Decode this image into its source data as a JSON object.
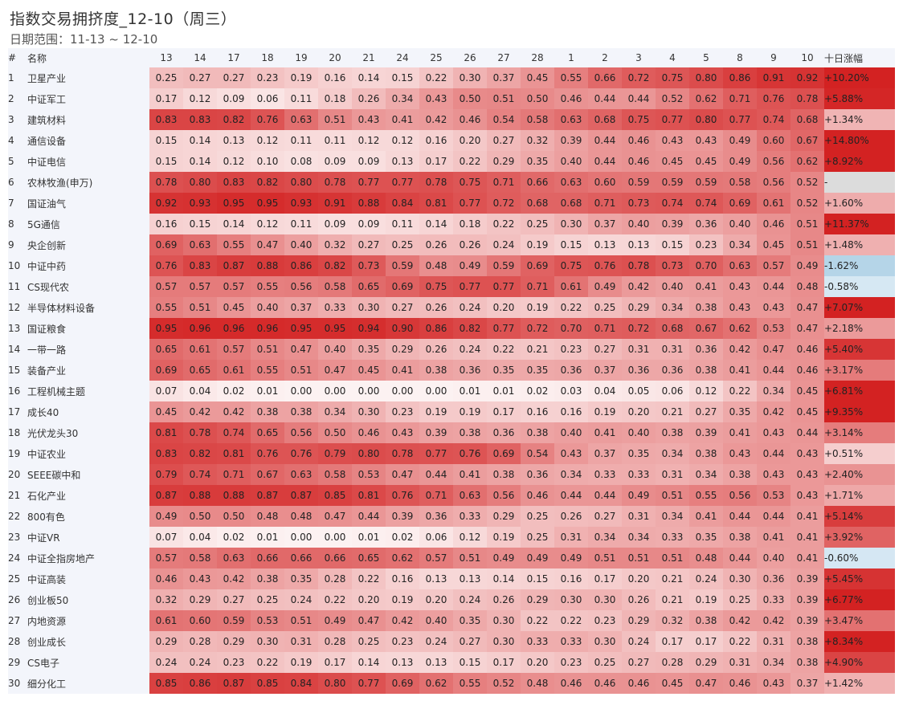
{
  "title": "指数交易拥挤度_12-10（周三）",
  "subtitle": "日期范围：11-13 ~ 12-10",
  "colors": {
    "hot": "#d32222",
    "cold": "#ffffff",
    "neg": "#b5d5e8",
    "na": "#dcdcdc",
    "header_bg": "#f3f5fb"
  },
  "chart_data": {
    "type": "heatmap",
    "headers": {
      "index": "#",
      "name": "名称",
      "change": "十日涨幅"
    },
    "dates": [
      "13",
      "14",
      "17",
      "18",
      "19",
      "20",
      "21",
      "24",
      "25",
      "26",
      "27",
      "28",
      "1",
      "2",
      "3",
      "4",
      "5",
      "8",
      "9",
      "10"
    ],
    "rows": [
      {
        "idx": "1",
        "name": "卫星产业",
        "values": [
          0.25,
          0.27,
          0.27,
          0.23,
          0.19,
          0.16,
          0.14,
          0.15,
          0.22,
          0.3,
          0.37,
          0.45,
          0.55,
          0.66,
          0.72,
          0.75,
          0.8,
          0.86,
          0.91,
          0.92
        ],
        "change": "+10.20%",
        "change_num": 10.2
      },
      {
        "idx": "2",
        "name": "中证军工",
        "values": [
          0.17,
          0.12,
          0.09,
          0.06,
          0.11,
          0.18,
          0.26,
          0.34,
          0.43,
          0.5,
          0.51,
          0.5,
          0.46,
          0.44,
          0.44,
          0.52,
          0.62,
          0.71,
          0.76,
          0.78
        ],
        "change": "+5.88%",
        "change_num": 5.88
      },
      {
        "idx": "3",
        "name": "建筑材料",
        "values": [
          0.83,
          0.83,
          0.82,
          0.76,
          0.63,
          0.51,
          0.43,
          0.41,
          0.42,
          0.46,
          0.54,
          0.58,
          0.63,
          0.68,
          0.75,
          0.77,
          0.8,
          0.77,
          0.74,
          0.68
        ],
        "change": "+1.34%",
        "change_num": 1.34
      },
      {
        "idx": "4",
        "name": "通信设备",
        "values": [
          0.15,
          0.14,
          0.13,
          0.12,
          0.11,
          0.11,
          0.12,
          0.12,
          0.16,
          0.2,
          0.27,
          0.32,
          0.39,
          0.44,
          0.46,
          0.43,
          0.43,
          0.49,
          0.6,
          0.67
        ],
        "change": "+14.80%",
        "change_num": 14.8
      },
      {
        "idx": "5",
        "name": "中证电信",
        "values": [
          0.15,
          0.14,
          0.12,
          0.1,
          0.08,
          0.09,
          0.09,
          0.13,
          0.17,
          0.22,
          0.29,
          0.35,
          0.4,
          0.44,
          0.46,
          0.45,
          0.45,
          0.49,
          0.56,
          0.62
        ],
        "change": "+8.92%",
        "change_num": 8.92
      },
      {
        "idx": "6",
        "name": "农林牧渔(申万)",
        "values": [
          0.78,
          0.8,
          0.83,
          0.82,
          0.8,
          0.78,
          0.77,
          0.77,
          0.78,
          0.75,
          0.71,
          0.66,
          0.63,
          0.6,
          0.59,
          0.59,
          0.59,
          0.58,
          0.56,
          0.52
        ],
        "change": "-",
        "change_num": null
      },
      {
        "idx": "7",
        "name": "国证油气",
        "values": [
          0.92,
          0.93,
          0.95,
          0.95,
          0.93,
          0.91,
          0.88,
          0.84,
          0.81,
          0.77,
          0.72,
          0.68,
          0.68,
          0.71,
          0.73,
          0.74,
          0.74,
          0.69,
          0.61,
          0.52
        ],
        "change": "+1.60%",
        "change_num": 1.6
      },
      {
        "idx": "8",
        "name": "5G通信",
        "values": [
          0.16,
          0.15,
          0.14,
          0.12,
          0.11,
          0.09,
          0.09,
          0.11,
          0.14,
          0.18,
          0.22,
          0.25,
          0.3,
          0.37,
          0.4,
          0.39,
          0.36,
          0.4,
          0.46,
          0.51
        ],
        "change": "+11.37%",
        "change_num": 11.37
      },
      {
        "idx": "9",
        "name": "央企创新",
        "values": [
          0.69,
          0.63,
          0.55,
          0.47,
          0.4,
          0.32,
          0.27,
          0.25,
          0.26,
          0.26,
          0.24,
          0.19,
          0.15,
          0.13,
          0.13,
          0.15,
          0.23,
          0.34,
          0.45,
          0.51
        ],
        "change": "+1.48%",
        "change_num": 1.48
      },
      {
        "idx": "10",
        "name": "中证中药",
        "values": [
          0.76,
          0.83,
          0.87,
          0.88,
          0.86,
          0.82,
          0.73,
          0.59,
          0.48,
          0.49,
          0.59,
          0.69,
          0.75,
          0.76,
          0.78,
          0.73,
          0.7,
          0.63,
          0.57,
          0.49
        ],
        "change": "-1.62%",
        "change_num": -1.62
      },
      {
        "idx": "11",
        "name": "CS现代农",
        "values": [
          0.57,
          0.57,
          0.57,
          0.55,
          0.56,
          0.58,
          0.65,
          0.69,
          0.75,
          0.77,
          0.77,
          0.71,
          0.61,
          0.49,
          0.42,
          0.4,
          0.41,
          0.43,
          0.44,
          0.48
        ],
        "change": "-0.58%",
        "change_num": -0.58
      },
      {
        "idx": "12",
        "name": "半导体材料设备",
        "values": [
          0.55,
          0.51,
          0.45,
          0.4,
          0.37,
          0.33,
          0.3,
          0.27,
          0.26,
          0.24,
          0.2,
          0.19,
          0.22,
          0.25,
          0.29,
          0.34,
          0.38,
          0.43,
          0.43,
          0.47
        ],
        "change": "+7.07%",
        "change_num": 7.07
      },
      {
        "idx": "13",
        "name": "国证粮食",
        "values": [
          0.95,
          0.96,
          0.96,
          0.96,
          0.95,
          0.95,
          0.94,
          0.9,
          0.86,
          0.82,
          0.77,
          0.72,
          0.7,
          0.71,
          0.72,
          0.68,
          0.67,
          0.62,
          0.53,
          0.47
        ],
        "change": "+2.18%",
        "change_num": 2.18
      },
      {
        "idx": "14",
        "name": "一带一路",
        "values": [
          0.65,
          0.61,
          0.57,
          0.51,
          0.47,
          0.4,
          0.35,
          0.29,
          0.26,
          0.24,
          0.22,
          0.21,
          0.23,
          0.27,
          0.31,
          0.31,
          0.36,
          0.42,
          0.47,
          0.46
        ],
        "change": "+5.40%",
        "change_num": 5.4
      },
      {
        "idx": "15",
        "name": "装备产业",
        "values": [
          0.69,
          0.65,
          0.61,
          0.55,
          0.51,
          0.47,
          0.45,
          0.41,
          0.38,
          0.36,
          0.35,
          0.35,
          0.36,
          0.37,
          0.36,
          0.36,
          0.38,
          0.41,
          0.44,
          0.46
        ],
        "change": "+3.17%",
        "change_num": 3.17
      },
      {
        "idx": "16",
        "name": "工程机械主题",
        "values": [
          0.07,
          0.04,
          0.02,
          0.01,
          0.0,
          0.0,
          0.0,
          0.0,
          0.0,
          0.01,
          0.01,
          0.02,
          0.03,
          0.04,
          0.05,
          0.06,
          0.12,
          0.22,
          0.34,
          0.45
        ],
        "change": "+6.81%",
        "change_num": 6.81
      },
      {
        "idx": "17",
        "name": "成长40",
        "values": [
          0.45,
          0.42,
          0.42,
          0.38,
          0.38,
          0.34,
          0.3,
          0.23,
          0.19,
          0.19,
          0.17,
          0.16,
          0.16,
          0.19,
          0.2,
          0.21,
          0.27,
          0.35,
          0.42,
          0.45
        ],
        "change": "+9.35%",
        "change_num": 9.35
      },
      {
        "idx": "18",
        "name": "光伏龙头30",
        "values": [
          0.81,
          0.78,
          0.74,
          0.65,
          0.56,
          0.5,
          0.46,
          0.43,
          0.39,
          0.38,
          0.36,
          0.38,
          0.4,
          0.41,
          0.4,
          0.38,
          0.39,
          0.41,
          0.43,
          0.44
        ],
        "change": "+3.14%",
        "change_num": 3.14
      },
      {
        "idx": "19",
        "name": "中证农业",
        "values": [
          0.83,
          0.82,
          0.81,
          0.76,
          0.76,
          0.79,
          0.8,
          0.78,
          0.77,
          0.76,
          0.69,
          0.54,
          0.43,
          0.37,
          0.35,
          0.34,
          0.38,
          0.43,
          0.44,
          0.43
        ],
        "change": "+0.51%",
        "change_num": 0.51
      },
      {
        "idx": "20",
        "name": "SEEE碳中和",
        "values": [
          0.79,
          0.74,
          0.71,
          0.67,
          0.63,
          0.58,
          0.53,
          0.47,
          0.44,
          0.41,
          0.38,
          0.36,
          0.34,
          0.33,
          0.33,
          0.31,
          0.34,
          0.38,
          0.43,
          0.43
        ],
        "change": "+2.40%",
        "change_num": 2.4
      },
      {
        "idx": "21",
        "name": "石化产业",
        "values": [
          0.87,
          0.88,
          0.88,
          0.87,
          0.87,
          0.85,
          0.81,
          0.76,
          0.71,
          0.63,
          0.56,
          0.46,
          0.44,
          0.44,
          0.49,
          0.51,
          0.55,
          0.56,
          0.53,
          0.43
        ],
        "change": "+1.71%",
        "change_num": 1.71
      },
      {
        "idx": "22",
        "name": "800有色",
        "values": [
          0.49,
          0.5,
          0.5,
          0.48,
          0.48,
          0.47,
          0.44,
          0.39,
          0.36,
          0.33,
          0.29,
          0.25,
          0.26,
          0.27,
          0.31,
          0.34,
          0.41,
          0.44,
          0.44,
          0.41
        ],
        "change": "+5.14%",
        "change_num": 5.14
      },
      {
        "idx": "23",
        "name": "中证VR",
        "values": [
          0.07,
          0.04,
          0.02,
          0.01,
          0.0,
          0.0,
          0.01,
          0.02,
          0.06,
          0.12,
          0.19,
          0.25,
          0.31,
          0.34,
          0.34,
          0.33,
          0.35,
          0.38,
          0.41,
          0.41
        ],
        "change": "+3.92%",
        "change_num": 3.92
      },
      {
        "idx": "24",
        "name": "中证全指房地产",
        "values": [
          0.57,
          0.58,
          0.63,
          0.66,
          0.66,
          0.66,
          0.65,
          0.62,
          0.57,
          0.51,
          0.49,
          0.49,
          0.49,
          0.51,
          0.51,
          0.51,
          0.48,
          0.44,
          0.4,
          0.41
        ],
        "change": "-0.60%",
        "change_num": -0.6
      },
      {
        "idx": "25",
        "name": "中证高装",
        "values": [
          0.46,
          0.43,
          0.42,
          0.38,
          0.35,
          0.28,
          0.22,
          0.16,
          0.13,
          0.13,
          0.14,
          0.15,
          0.16,
          0.17,
          0.2,
          0.21,
          0.24,
          0.3,
          0.36,
          0.39
        ],
        "change": "+5.45%",
        "change_num": 5.45
      },
      {
        "idx": "26",
        "name": "创业板50",
        "values": [
          0.32,
          0.29,
          0.27,
          0.25,
          0.24,
          0.22,
          0.2,
          0.19,
          0.2,
          0.24,
          0.26,
          0.29,
          0.3,
          0.3,
          0.26,
          0.21,
          0.19,
          0.25,
          0.33,
          0.39
        ],
        "change": "+6.77%",
        "change_num": 6.77
      },
      {
        "idx": "27",
        "name": "内地资源",
        "values": [
          0.61,
          0.6,
          0.59,
          0.53,
          0.51,
          0.49,
          0.47,
          0.42,
          0.4,
          0.35,
          0.3,
          0.22,
          0.22,
          0.23,
          0.29,
          0.32,
          0.38,
          0.42,
          0.42,
          0.39
        ],
        "change": "+3.47%",
        "change_num": 3.47
      },
      {
        "idx": "28",
        "name": "创业成长",
        "values": [
          0.29,
          0.28,
          0.29,
          0.3,
          0.31,
          0.28,
          0.25,
          0.23,
          0.24,
          0.27,
          0.3,
          0.33,
          0.33,
          0.3,
          0.24,
          0.17,
          0.17,
          0.22,
          0.31,
          0.38
        ],
        "change": "+8.34%",
        "change_num": 8.34
      },
      {
        "idx": "29",
        "name": "CS电子",
        "values": [
          0.24,
          0.24,
          0.23,
          0.22,
          0.19,
          0.17,
          0.14,
          0.13,
          0.13,
          0.15,
          0.17,
          0.2,
          0.23,
          0.25,
          0.27,
          0.28,
          0.29,
          0.31,
          0.34,
          0.38
        ],
        "change": "+4.90%",
        "change_num": 4.9
      },
      {
        "idx": "30",
        "name": "细分化工",
        "values": [
          0.85,
          0.86,
          0.87,
          0.85,
          0.84,
          0.8,
          0.77,
          0.69,
          0.62,
          0.55,
          0.52,
          0.48,
          0.46,
          0.46,
          0.46,
          0.45,
          0.47,
          0.46,
          0.43,
          0.37
        ],
        "change": "+1.42%",
        "change_num": 1.42
      }
    ]
  }
}
